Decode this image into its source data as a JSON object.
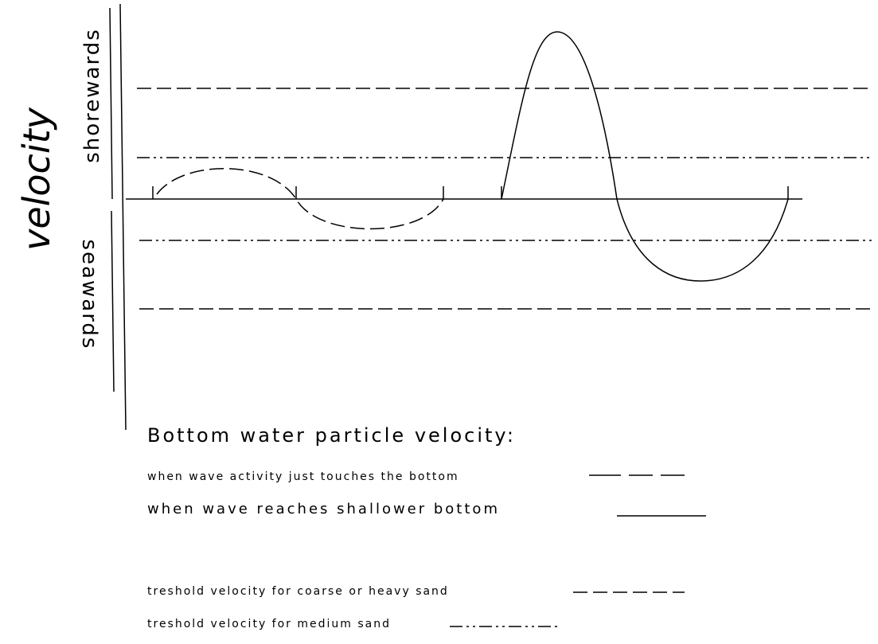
{
  "axis": {
    "label": "velocity",
    "up_label": "shorewards",
    "down_label": "seawards"
  },
  "legend": {
    "title": "Bottom water particle velocity:",
    "items": [
      "when wave activity just touches the bottom",
      "when wave reaches shallower bottom",
      "treshold velocity for coarse or heavy sand",
      "treshold velocity for medium sand"
    ]
  }
}
